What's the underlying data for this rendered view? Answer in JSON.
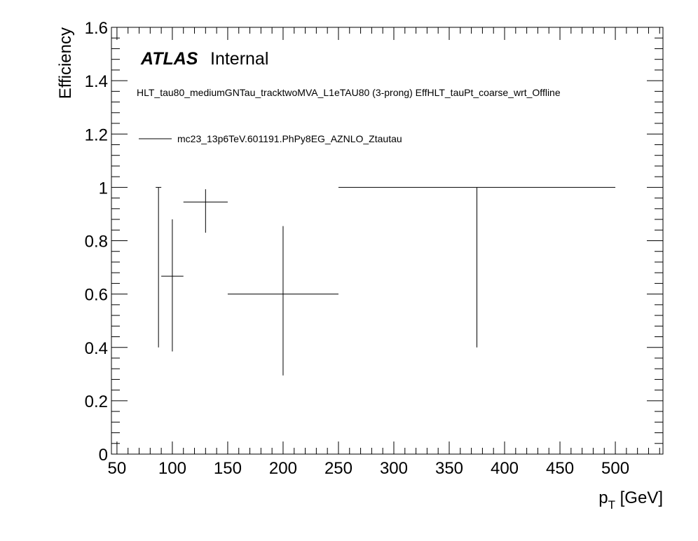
{
  "labels": {
    "atlas": "ATLAS",
    "internal": "Internal",
    "trigger": "HLT_tau80_mediumGNTau_tracktwoMVA_L1eTAU80 (3-prong) EffHLT_tauPt_coarse_wrt_Offline",
    "legend_entry": "mc23_13p6TeV.601191.PhPy8EG_AZNLO_Ztautau",
    "ylabel": "Efficiency",
    "xlabel_main": "p",
    "xlabel_sub": "T",
    "xlabel_unit": " [GeV]"
  },
  "colors": {
    "line": "#000000",
    "background": "#ffffff"
  },
  "chart_data": {
    "type": "scatter",
    "style": "error-bars",
    "xlabel": "p_T [GeV]",
    "ylabel": "Efficiency",
    "xlim": [
      45,
      543
    ],
    "ylim": [
      0,
      1.6
    ],
    "x_ticks": [
      50,
      100,
      150,
      200,
      250,
      300,
      350,
      400,
      450,
      500
    ],
    "y_ticks": [
      0,
      0.2,
      0.4,
      0.6,
      0.8,
      1,
      1.2,
      1.4,
      1.6
    ],
    "x_tick_labels": [
      "50",
      "100",
      "150",
      "200",
      "250",
      "300",
      "350",
      "400",
      "450",
      "500"
    ],
    "y_tick_labels": [
      "0",
      "0.2",
      "0.4",
      "0.6",
      "0.8",
      "1",
      "1.2",
      "1.4",
      "1.6"
    ],
    "grid": false,
    "legend_position": "top-left",
    "series": [
      {
        "name": "mc23_13p6TeV.601191.PhPy8EG_AZNLO_Ztautau",
        "points": [
          {
            "x": 87.5,
            "xlow": 87.5,
            "xhigh": 87.5,
            "y": 1.0,
            "ylow": 0.4,
            "yhigh": 1.0
          },
          {
            "x": 100,
            "xlow": 90,
            "xhigh": 110,
            "y": 0.667,
            "ylow": 0.385,
            "yhigh": 0.88
          },
          {
            "x": 130,
            "xlow": 110,
            "xhigh": 150,
            "y": 0.945,
            "ylow": 0.83,
            "yhigh": 0.993
          },
          {
            "x": 200,
            "xlow": 150,
            "xhigh": 250,
            "y": 0.6,
            "ylow": 0.295,
            "yhigh": 0.855
          },
          {
            "x": 375,
            "xlow": 250,
            "xhigh": 500,
            "y": 1.0,
            "ylow": 0.4,
            "yhigh": 1.0
          }
        ]
      }
    ]
  }
}
